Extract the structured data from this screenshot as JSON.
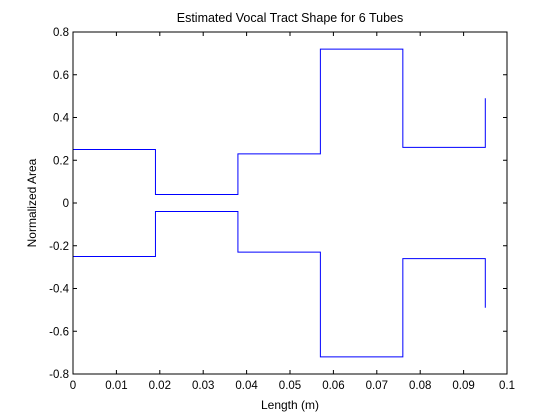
{
  "chart_data": {
    "type": "line",
    "title": "Estimated Vocal Tract Shape for 6 Tubes",
    "xlabel": "Length (m)",
    "ylabel": "Normalized Area",
    "xlim": [
      0,
      0.1
    ],
    "ylim": [
      -0.8,
      0.8
    ],
    "x_ticks": [
      0,
      0.01,
      0.02,
      0.03,
      0.04,
      0.05,
      0.06,
      0.07,
      0.08,
      0.09,
      0.1
    ],
    "x_tick_labels": [
      "0",
      "0.01",
      "0.02",
      "0.03",
      "0.04",
      "0.05",
      "0.06",
      "0.07",
      "0.08",
      "0.09",
      "0.1"
    ],
    "y_ticks": [
      -0.8,
      -0.6,
      -0.4,
      -0.2,
      0,
      0.2,
      0.4,
      0.6,
      0.8
    ],
    "y_tick_labels": [
      "-0.8",
      "-0.6",
      "-0.4",
      "-0.2",
      "0",
      "0.2",
      "0.4",
      "0.6",
      "0.8"
    ],
    "grid": false,
    "line_color": "#0000ff",
    "series": [
      {
        "x": [
          0,
          0.019,
          0.019,
          0.038,
          0.038,
          0.057,
          0.057,
          0.076,
          0.076,
          0.095,
          0.095
        ],
        "y": [
          0.25,
          0.25,
          0.04,
          0.04,
          0.23,
          0.23,
          0.72,
          0.72,
          0.26,
          0.26,
          0.49
        ]
      },
      {
        "x": [
          0,
          0.019,
          0.019,
          0.038,
          0.038,
          0.057,
          0.057,
          0.076,
          0.076,
          0.095,
          0.095
        ],
        "y": [
          -0.25,
          -0.25,
          -0.04,
          -0.04,
          -0.23,
          -0.23,
          -0.72,
          -0.72,
          -0.26,
          -0.26,
          -0.49
        ]
      }
    ]
  }
}
